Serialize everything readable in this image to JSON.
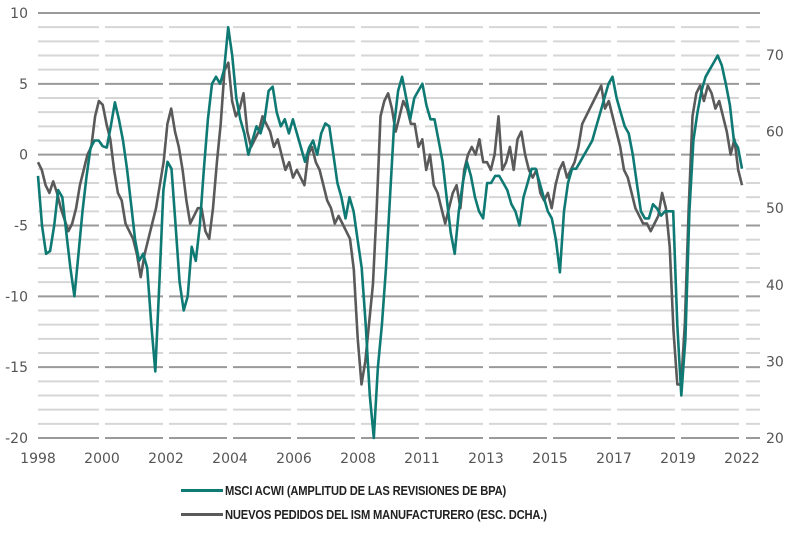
{
  "chart_data": {
    "type": "line",
    "title": "",
    "x_tick_labels": [
      "1998",
      "2000",
      "2002",
      "2004",
      "2006",
      "2008",
      "2011",
      "2013",
      "2015",
      "2017",
      "2019",
      "2022"
    ],
    "y_left": {
      "ticks": [
        10,
        5,
        0,
        -5,
        -10,
        -15,
        -20
      ],
      "range": [
        -20,
        10
      ],
      "minor_step": 1,
      "major_step": 5
    },
    "y_right": {
      "ticks": [
        70,
        60,
        50,
        40,
        30,
        20
      ],
      "range": [
        20,
        75
      ]
    },
    "grid": true,
    "legend_position": "bottom",
    "series": [
      {
        "name": "MSCI ACWI (AMPLITUD DE LAS REVISIONES DE BPA)",
        "axis": "left",
        "color": "#0f7a74",
        "values": [
          -1.5,
          -5,
          -7,
          -6.8,
          -5,
          -2.5,
          -3,
          -5.5,
          -8,
          -10,
          -7,
          -4,
          -1.5,
          0.5,
          1,
          1,
          0.6,
          0.5,
          2,
          3.7,
          2.5,
          1,
          -1,
          -3.5,
          -6,
          -7.5,
          -7,
          -8,
          -12,
          -15.3,
          -9,
          -2.5,
          -0.5,
          -1,
          -5,
          -9,
          -11,
          -10,
          -6.5,
          -7.5,
          -5,
          -1,
          2.5,
          5,
          5.5,
          5,
          6,
          9,
          7,
          4,
          2.5,
          1.5,
          0,
          1,
          2,
          1.5,
          2.5,
          4.5,
          4.8,
          3,
          2,
          2.5,
          1.5,
          2.5,
          1.5,
          0.5,
          -0.5,
          0.5,
          1,
          0,
          1.5,
          2.2,
          2,
          0,
          -2,
          -3,
          -4.5,
          -3,
          -4,
          -6,
          -8,
          -12,
          -17,
          -20,
          -15,
          -12,
          -8,
          -3,
          2,
          4.5,
          5.5,
          4,
          2.5,
          4,
          4.5,
          5,
          3.5,
          2.5,
          2.5,
          1,
          -0.5,
          -3,
          -5.5,
          -7,
          -4,
          -2,
          -0.5,
          -1.5,
          -3,
          -4,
          -4.5,
          -2,
          -2,
          -1.5,
          -1.5,
          -2,
          -2.5,
          -3.5,
          -4,
          -5,
          -3,
          -2,
          -1,
          -1,
          -2,
          -3,
          -4,
          -4.5,
          -6,
          -8.3,
          -4,
          -2,
          -1,
          -1,
          -0.5,
          0,
          0.5,
          1,
          2,
          3,
          4,
          5,
          5.5,
          4,
          3,
          2,
          1.5,
          0,
          -2,
          -4,
          -4.5,
          -4.5,
          -3.5,
          -3.8,
          -4.3,
          -4,
          -4,
          -4,
          -12,
          -17,
          -13,
          -4,
          1,
          3,
          4.5,
          5.5,
          6,
          6.5,
          7,
          6.3,
          5,
          3.5,
          1,
          0.5,
          -1
        ],
        "start_label": "1998",
        "end_label": "2022"
      },
      {
        "name": "NUEVOS PEDIDOS DEL ISM MANUFACTURERO (ESC. DCHA.)",
        "axis": "right",
        "color": "#5a5a5a",
        "values": [
          56,
          55,
          53,
          52,
          53.5,
          52,
          50,
          48.5,
          47,
          48,
          50,
          53,
          55,
          57,
          58,
          62,
          64,
          63.5,
          61,
          59,
          55,
          52,
          51,
          48,
          47,
          46,
          44,
          41,
          44,
          46,
          48,
          50,
          53,
          56,
          61,
          63,
          60,
          58,
          55,
          51,
          48,
          49,
          50,
          50,
          47,
          46,
          50,
          56,
          61,
          68,
          69,
          64,
          62,
          63,
          65,
          60,
          58,
          59,
          60,
          62,
          61,
          60,
          58,
          59,
          57,
          55,
          56,
          54,
          55,
          54,
          53,
          57,
          58,
          56,
          55,
          53,
          51,
          50,
          48,
          49,
          48,
          47,
          46,
          42,
          33,
          27,
          30,
          35,
          40,
          50,
          62,
          64,
          65,
          63,
          60,
          62,
          64,
          63,
          61,
          61,
          58,
          59,
          55,
          57,
          53,
          52,
          50,
          48,
          50,
          52,
          53,
          50,
          55,
          57,
          58,
          57,
          59,
          56,
          56,
          55,
          57,
          62,
          55,
          56,
          58,
          55,
          59,
          60,
          57,
          55,
          54,
          55,
          52,
          51,
          52,
          50,
          53,
          55,
          56,
          54,
          55,
          56,
          58,
          61,
          62,
          63,
          64,
          65,
          66,
          63,
          64,
          62,
          60,
          58,
          55,
          54,
          52,
          50,
          49,
          48,
          48,
          47,
          48,
          49,
          52,
          50,
          45,
          34,
          27,
          27,
          35,
          50,
          62,
          65,
          66,
          64,
          66,
          65,
          63,
          64,
          62,
          60,
          57,
          59,
          55,
          53
        ],
        "start_label": "1998",
        "end_label": "2022"
      }
    ]
  },
  "legend": {
    "items": [
      {
        "label": "MSCI ACWI (AMPLITUD DE LAS REVISIONES DE BPA)",
        "color": "#0f7a74"
      },
      {
        "label": "NUEVOS PEDIDOS DEL ISM MANUFACTURERO (ESC. DCHA.)",
        "color": "#5a5a5a"
      }
    ]
  }
}
